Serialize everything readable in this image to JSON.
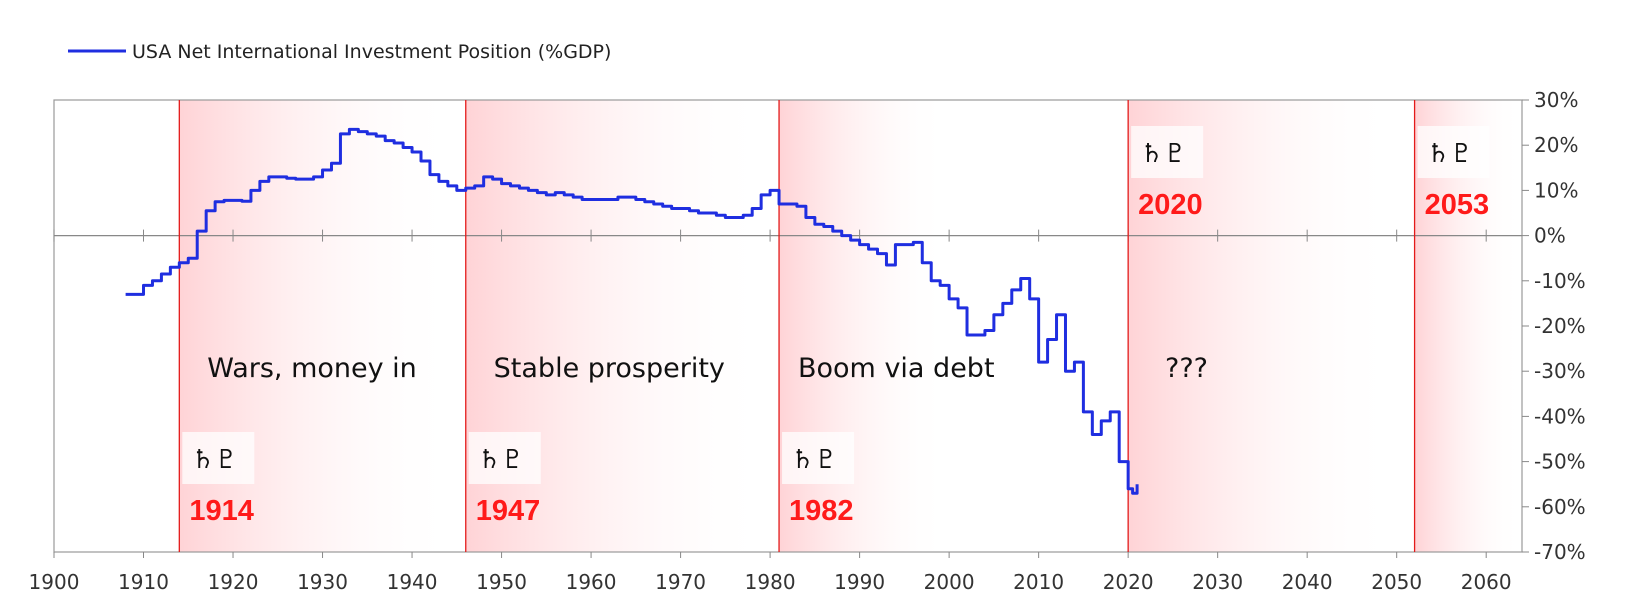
{
  "legend": {
    "label": "USA Net International Investment Position (%GDP)",
    "color": "#1f2ee0"
  },
  "colors": {
    "line": "#1f2ee0",
    "marker": "#e31a1a",
    "band": "#ffd5d8",
    "zero_line": "#888888",
    "frame": "#999999",
    "year_label": "#ff1a1a"
  },
  "chart_data": {
    "type": "line",
    "xlim": [
      1900,
      2064
    ],
    "ylim": [
      -70,
      30
    ],
    "x_ticks": [
      1900,
      1910,
      1920,
      1930,
      1940,
      1950,
      1960,
      1970,
      1980,
      1990,
      2000,
      2010,
      2020,
      2030,
      2040,
      2050,
      2060
    ],
    "x_tick_labels": [
      "1900",
      "1910",
      "1920",
      "1930",
      "1940",
      "1950",
      "1960",
      "1970",
      "1980",
      "1990",
      "2000",
      "2010",
      "2020",
      "2030",
      "2040",
      "2050",
      "2060"
    ],
    "y_ticks": [
      30,
      20,
      10,
      0,
      -10,
      -20,
      -30,
      -40,
      -50,
      -60,
      -70
    ],
    "y_tick_labels": [
      "30%",
      "20%",
      "10%",
      "0%",
      "-10%",
      "-20%",
      "-30%",
      "-40%",
      "-50%",
      "-60%",
      "-70%"
    ],
    "y_axis_side": "right",
    "grid": false,
    "legend_position": "top-left",
    "series": [
      {
        "name": "USA Net International Investment Position (%GDP)",
        "color": "#1f2ee0",
        "points": [
          [
            1908,
            -13
          ],
          [
            1909,
            -13
          ],
          [
            1910,
            -11
          ],
          [
            1911,
            -10
          ],
          [
            1912,
            -8.5
          ],
          [
            1913,
            -7
          ],
          [
            1914,
            -6
          ],
          [
            1915,
            -5
          ],
          [
            1916,
            1
          ],
          [
            1917,
            5.5
          ],
          [
            1918,
            7.5
          ],
          [
            1919,
            7.8
          ],
          [
            1920,
            7.8
          ],
          [
            1921,
            7.6
          ],
          [
            1922,
            10
          ],
          [
            1923,
            12
          ],
          [
            1924,
            13
          ],
          [
            1925,
            13
          ],
          [
            1926,
            12.7
          ],
          [
            1927,
            12.5
          ],
          [
            1928,
            12.5
          ],
          [
            1929,
            13
          ],
          [
            1930,
            14.5
          ],
          [
            1931,
            16
          ],
          [
            1932,
            22.5
          ],
          [
            1933,
            23.5
          ],
          [
            1934,
            23
          ],
          [
            1935,
            22.5
          ],
          [
            1936,
            22
          ],
          [
            1937,
            21
          ],
          [
            1938,
            20.5
          ],
          [
            1939,
            19.5
          ],
          [
            1940,
            18.5
          ],
          [
            1941,
            16.5
          ],
          [
            1942,
            13.5
          ],
          [
            1943,
            12
          ],
          [
            1944,
            11
          ],
          [
            1945,
            10
          ],
          [
            1946,
            10.5
          ],
          [
            1947,
            11
          ],
          [
            1948,
            13
          ],
          [
            1949,
            12.5
          ],
          [
            1950,
            11.5
          ],
          [
            1951,
            11
          ],
          [
            1952,
            10.5
          ],
          [
            1953,
            10
          ],
          [
            1954,
            9.5
          ],
          [
            1955,
            9
          ],
          [
            1956,
            9.5
          ],
          [
            1957,
            9
          ],
          [
            1958,
            8.5
          ],
          [
            1959,
            8
          ],
          [
            1960,
            8
          ],
          [
            1961,
            8
          ],
          [
            1962,
            8
          ],
          [
            1963,
            8.5
          ],
          [
            1964,
            8.5
          ],
          [
            1965,
            8
          ],
          [
            1966,
            7.5
          ],
          [
            1967,
            7
          ],
          [
            1968,
            6.5
          ],
          [
            1969,
            6
          ],
          [
            1970,
            6
          ],
          [
            1971,
            5.5
          ],
          [
            1972,
            5
          ],
          [
            1973,
            5
          ],
          [
            1974,
            4.5
          ],
          [
            1975,
            4
          ],
          [
            1976,
            4
          ],
          [
            1977,
            4.5
          ],
          [
            1978,
            6
          ],
          [
            1979,
            9
          ],
          [
            1980,
            10
          ],
          [
            1981,
            7
          ],
          [
            1982,
            7
          ],
          [
            1983,
            6.5
          ],
          [
            1984,
            4
          ],
          [
            1985,
            2.5
          ],
          [
            1986,
            2
          ],
          [
            1987,
            1
          ],
          [
            1988,
            0
          ],
          [
            1989,
            -1
          ],
          [
            1990,
            -2
          ],
          [
            1991,
            -3
          ],
          [
            1992,
            -4
          ],
          [
            1993,
            -6.5
          ],
          [
            1994,
            -2
          ],
          [
            1995,
            -2
          ],
          [
            1996,
            -1.5
          ],
          [
            1997,
            -6
          ],
          [
            1998,
            -10
          ],
          [
            1999,
            -11
          ],
          [
            2000,
            -14
          ],
          [
            2001,
            -16
          ],
          [
            2002,
            -22
          ],
          [
            2003,
            -22
          ],
          [
            2004,
            -21
          ],
          [
            2005,
            -17.5
          ],
          [
            2006,
            -15
          ],
          [
            2007,
            -12
          ],
          [
            2008,
            -9.5
          ],
          [
            2009,
            -14
          ],
          [
            2010,
            -28
          ],
          [
            2011,
            -23
          ],
          [
            2012,
            -17.5
          ],
          [
            2013,
            -30
          ],
          [
            2014,
            -28
          ],
          [
            2015,
            -39
          ],
          [
            2016,
            -44
          ],
          [
            2017,
            -41
          ],
          [
            2018,
            -39
          ],
          [
            2019,
            -50
          ],
          [
            2020,
            -56
          ],
          [
            2020.5,
            -57
          ],
          [
            2021,
            -55
          ]
        ]
      }
    ],
    "markers": [
      {
        "year": 1914,
        "label": "1914",
        "band_end": 1945
      },
      {
        "year": 1946,
        "label": "1947",
        "band_end": 1980
      },
      {
        "year": 1981,
        "label": "1982",
        "band_end": 2000
      },
      {
        "year": 2020,
        "label": "2020",
        "band_end": 2050
      },
      {
        "year": 2052,
        "label": "2053",
        "band_end": 2064
      }
    ],
    "eras": [
      {
        "label": "Wars, money in",
        "x": 1916
      },
      {
        "label": "Stable prosperity",
        "x": 1948
      },
      {
        "label": "Boom via debt",
        "x": 1982
      },
      {
        "label": "???",
        "x": 2023
      }
    ],
    "glyph_icon": "saturn-pluto-conjunction-icon",
    "glyph_text": "♄♇"
  }
}
